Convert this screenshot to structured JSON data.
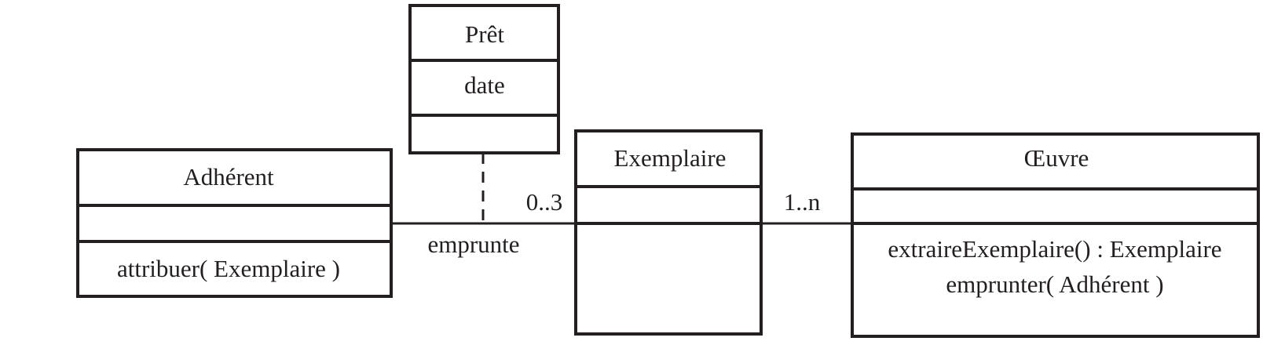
{
  "classes": {
    "pret": {
      "name": "Prêt",
      "attribute": "date"
    },
    "adherent": {
      "name": "Adhérent",
      "method": "attribuer( Exemplaire )"
    },
    "exemplaire": {
      "name": "Exemplaire"
    },
    "oeuvre": {
      "name": "Œuvre",
      "methods": [
        "extraireExemplaire() : Exemplaire",
        "emprunter( Adhérent )"
      ]
    }
  },
  "associations": {
    "emprunte": {
      "label": "emprunte",
      "multiplicity": "0..3"
    },
    "exemplaires": {
      "multiplicity": "1..n"
    }
  }
}
